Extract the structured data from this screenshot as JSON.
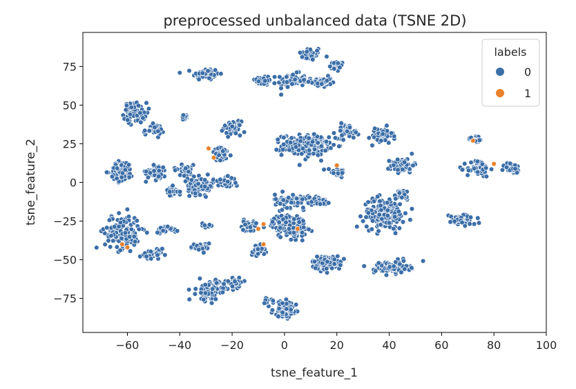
{
  "chart_data": {
    "type": "scatter",
    "title": "preprocessed unbalanced data (TSNE 2D)",
    "xlabel": "tsne_feature_1",
    "ylabel": "tsne_feature_2",
    "xlim": [
      -77,
      100
    ],
    "ylim": [
      -97,
      97
    ],
    "xticks": [
      -60,
      -40,
      -20,
      0,
      20,
      40,
      60,
      80,
      100
    ],
    "yticks": [
      -75,
      -50,
      -25,
      0,
      25,
      50,
      75
    ],
    "grid": false,
    "legend": {
      "title": "labels",
      "placement": "top-right",
      "entries": [
        {
          "label": "0",
          "color": "#3b6ea8"
        },
        {
          "label": "1",
          "color": "#e8812b"
        }
      ]
    },
    "marker_edge_color": "#ffffff",
    "series": [
      {
        "name": "0",
        "color": "#3b6ea8",
        "clusters": [
          {
            "cx": 10,
            "cy": 83,
            "rx": 4,
            "ry": 4,
            "n": 40
          },
          {
            "cx": 20,
            "cy": 75,
            "rx": 2.5,
            "ry": 3,
            "n": 30
          },
          {
            "cx": -30,
            "cy": 70,
            "rx": 4.5,
            "ry": 3.5,
            "n": 70
          },
          {
            "cx": -8,
            "cy": 66,
            "rx": 3,
            "ry": 3,
            "n": 35
          },
          {
            "cx": 3,
            "cy": 66,
            "rx": 5,
            "ry": 4,
            "n": 70
          },
          {
            "cx": 14,
            "cy": 65,
            "rx": 3.5,
            "ry": 3,
            "n": 45
          },
          {
            "cx": -57,
            "cy": 45,
            "rx": 4,
            "ry": 6,
            "n": 70
          },
          {
            "cx": -50,
            "cy": 34,
            "rx": 3.5,
            "ry": 3,
            "n": 35
          },
          {
            "cx": -38,
            "cy": 42,
            "rx": 1.5,
            "ry": 2,
            "n": 12
          },
          {
            "cx": -20,
            "cy": 35,
            "rx": 3,
            "ry": 4,
            "n": 45
          },
          {
            "cx": -24,
            "cy": 18,
            "rx": 3.5,
            "ry": 4,
            "n": 40
          },
          {
            "cx": 8,
            "cy": 24,
            "rx": 8,
            "ry": 6,
            "n": 240
          },
          {
            "cx": 24,
            "cy": 33,
            "rx": 4,
            "ry": 4,
            "n": 45
          },
          {
            "cx": 37,
            "cy": 30,
            "rx": 4,
            "ry": 5,
            "n": 50
          },
          {
            "cx": 20,
            "cy": 7,
            "rx": 3.5,
            "ry": 2.5,
            "n": 30
          },
          {
            "cx": 45,
            "cy": 11,
            "rx": 4,
            "ry": 4,
            "n": 70
          },
          {
            "cx": 73,
            "cy": 28,
            "rx": 2.5,
            "ry": 2,
            "n": 20
          },
          {
            "cx": 74,
            "cy": 9,
            "rx": 4,
            "ry": 5,
            "n": 55
          },
          {
            "cx": 87,
            "cy": 9,
            "rx": 3,
            "ry": 3,
            "n": 40
          },
          {
            "cx": -62,
            "cy": 7,
            "rx": 4,
            "ry": 6,
            "n": 90
          },
          {
            "cx": -49,
            "cy": 7,
            "rx": 3.5,
            "ry": 5,
            "n": 45
          },
          {
            "cx": -38,
            "cy": 8,
            "rx": 4,
            "ry": 3,
            "n": 35
          },
          {
            "cx": -32,
            "cy": -2,
            "rx": 4.5,
            "ry": 5,
            "n": 110
          },
          {
            "cx": -43,
            "cy": -6,
            "rx": 2.5,
            "ry": 3,
            "n": 25
          },
          {
            "cx": -22,
            "cy": 0,
            "rx": 3,
            "ry": 3,
            "n": 35
          },
          {
            "cx": -62,
            "cy": -32,
            "rx": 6,
            "ry": 10,
            "n": 160
          },
          {
            "cx": -50,
            "cy": -47,
            "rx": 4,
            "ry": 3,
            "n": 45
          },
          {
            "cx": -45,
            "cy": -30,
            "rx": 4,
            "ry": 2,
            "n": 25
          },
          {
            "cx": -32,
            "cy": -42,
            "rx": 3.5,
            "ry": 2.5,
            "n": 30
          },
          {
            "cx": -30,
            "cy": -28,
            "rx": 1.5,
            "ry": 2,
            "n": 10
          },
          {
            "cx": -14,
            "cy": -28,
            "rx": 3,
            "ry": 3,
            "n": 30
          },
          {
            "cx": -10,
            "cy": -44,
            "rx": 2.5,
            "ry": 3,
            "n": 30
          },
          {
            "cx": 2,
            "cy": -28,
            "rx": 6,
            "ry": 7,
            "n": 150
          },
          {
            "cx": 3,
            "cy": -12,
            "rx": 6,
            "ry": 4,
            "n": 80
          },
          {
            "cx": 13,
            "cy": -12,
            "rx": 3,
            "ry": 3,
            "n": 40
          },
          {
            "cx": 16,
            "cy": -52,
            "rx": 5,
            "ry": 4,
            "n": 90
          },
          {
            "cx": 38,
            "cy": -20,
            "rx": 7,
            "ry": 9,
            "n": 170
          },
          {
            "cx": 45,
            "cy": -8,
            "rx": 3,
            "ry": 3,
            "n": 30
          },
          {
            "cx": 41,
            "cy": -55,
            "rx": 6,
            "ry": 3.5,
            "n": 110
          },
          {
            "cx": 68,
            "cy": -24,
            "rx": 4.5,
            "ry": 3,
            "n": 65
          },
          {
            "cx": -28,
            "cy": -70,
            "rx": 5,
            "ry": 6,
            "n": 90
          },
          {
            "cx": -19,
            "cy": -65,
            "rx": 3,
            "ry": 3,
            "n": 35
          },
          {
            "cx": 0,
            "cy": -82,
            "rx": 4,
            "ry": 4.5,
            "n": 120
          },
          {
            "cx": -7,
            "cy": -77,
            "rx": 2,
            "ry": 2,
            "n": 10
          }
        ]
      },
      {
        "name": "1",
        "color": "#e8812b",
        "points": [
          [
            -29,
            22
          ],
          [
            -27,
            16
          ],
          [
            -8,
            -27
          ],
          [
            -10,
            -30
          ],
          [
            5,
            -30
          ],
          [
            20,
            11
          ],
          [
            72,
            27
          ],
          [
            80,
            12
          ],
          [
            -62,
            -40
          ],
          [
            -60,
            -42
          ],
          [
            -8,
            -40
          ]
        ]
      }
    ]
  }
}
